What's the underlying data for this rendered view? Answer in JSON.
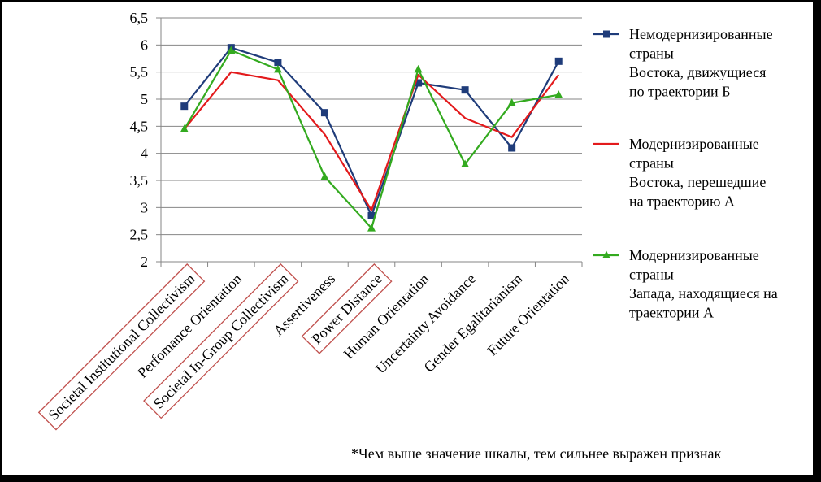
{
  "chart_data": {
    "type": "line",
    "ylim": [
      2,
      6.5
    ],
    "y_ticks": [
      "2",
      "2,5",
      "3",
      "3,5",
      "4",
      "4,5",
      "5",
      "5,5",
      "6",
      "6,5"
    ],
    "categories": [
      "Societal Institutional Collectivism",
      "Perfomance Orientation",
      "Societal In-Group Collectivism",
      "Assertiveness",
      "Power Distance",
      "Human Orientation",
      "Uncertainty Avoidance",
      "Gender Egalitarianism",
      "Future Orientation"
    ],
    "boxed_categories": [
      0,
      2,
      4
    ],
    "boxed_color": "#c0504d",
    "grid": true,
    "legend_position": "right",
    "series": [
      {
        "name_lines": [
          "Немодернизированные",
          "страны",
          "Востока, движущиеся",
          "по траектории Б"
        ],
        "color": "#1f3c7a",
        "marker": "square",
        "values": [
          4.87,
          5.95,
          5.68,
          4.75,
          2.85,
          5.3,
          5.17,
          4.1,
          5.7
        ]
      },
      {
        "name_lines": [
          "Модернизированные",
          "страны",
          "Востока, перешедшие",
          "на траекторию А"
        ],
        "color": "#e31a1c",
        "marker": "none",
        "values": [
          4.45,
          5.5,
          5.35,
          4.35,
          2.95,
          5.45,
          4.65,
          4.3,
          5.45
        ]
      },
      {
        "name_lines": [
          "Модернизированные",
          "страны",
          "Запада, находящиеся на",
          "траектории А"
        ],
        "color": "#33aa1f",
        "marker": "triangle",
        "values": [
          4.45,
          5.9,
          5.55,
          3.57,
          2.62,
          5.55,
          3.8,
          4.93,
          5.08
        ]
      }
    ],
    "footnote": "*Чем выше значение шкалы, тем сильнее выражен признак"
  }
}
